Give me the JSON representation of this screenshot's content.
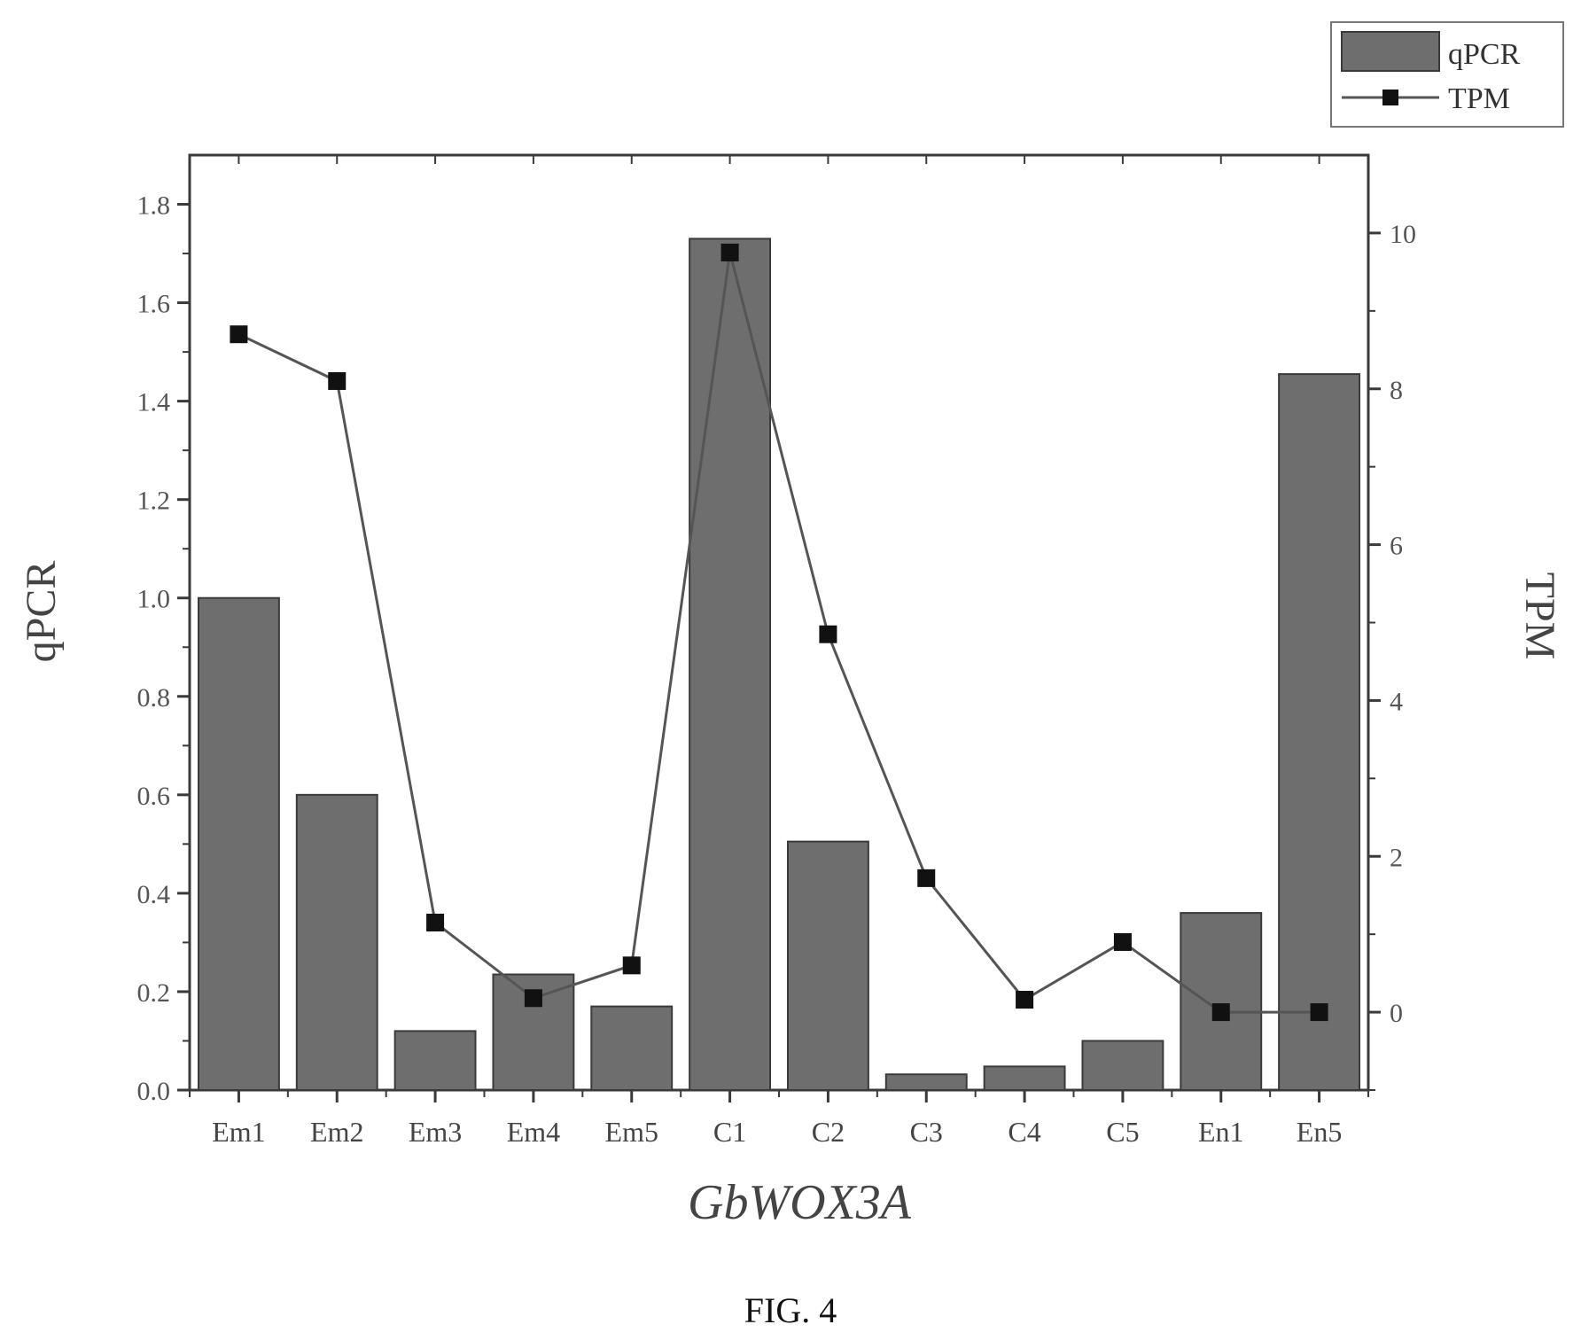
{
  "chart_data": {
    "type": "bar",
    "categories": [
      "Em1",
      "Em2",
      "Em3",
      "Em4",
      "Em5",
      "C1",
      "C2",
      "C3",
      "C4",
      "C5",
      "En1",
      "En5"
    ],
    "series": [
      {
        "name": "qPCR",
        "type": "bar",
        "axis": "left",
        "values": [
          1.0,
          0.6,
          0.12,
          0.235,
          0.17,
          1.73,
          0.505,
          0.032,
          0.048,
          0.1,
          0.36,
          1.455
        ]
      },
      {
        "name": "TPM",
        "type": "line",
        "axis": "right",
        "values": [
          8.7,
          8.1,
          1.15,
          0.18,
          0.6,
          9.75,
          4.85,
          1.72,
          0.16,
          0.9,
          0.0,
          0.0
        ]
      }
    ],
    "xlabel": "GbWOX3A",
    "ylabel": "qPCR",
    "y2label": "TPM",
    "ylim": [
      0,
      1.9
    ],
    "y2lim": [
      -1,
      11
    ],
    "yticks": [
      "0.0",
      "0.2",
      "0.4",
      "0.6",
      "0.8",
      "1.0",
      "1.2",
      "1.4",
      "1.6",
      "1.8"
    ],
    "y2ticks": [
      "0",
      "2",
      "4",
      "6",
      "8",
      "10"
    ],
    "legend_position": "top-right",
    "colors": {
      "bar_fill": "#6e6e6e",
      "bar_stroke": "#3a3a3a",
      "line": "#555555",
      "marker": "#111111",
      "axis": "#3a3a3a"
    }
  },
  "caption": "FIG. 4"
}
